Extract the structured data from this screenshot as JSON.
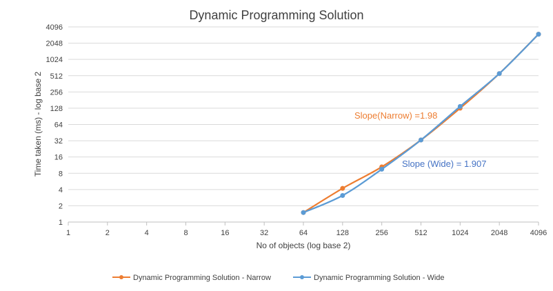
{
  "chart_data": {
    "type": "line",
    "title": "Dynamic Programming Solution",
    "xlabel": "No of objects (log base 2)",
    "ylabel": "Time taken (ms) - log base 2",
    "x_scale": "log2",
    "y_scale": "log2",
    "xlim": [
      1,
      4096
    ],
    "ylim": [
      1,
      4096
    ],
    "x_ticks": [
      "1",
      "2",
      "4",
      "8",
      "16",
      "32",
      "64",
      "128",
      "256",
      "512",
      "1024",
      "2048",
      "4096"
    ],
    "y_ticks": [
      "1",
      "2",
      "4",
      "8",
      "16",
      "32",
      "64",
      "128",
      "256",
      "512",
      "1024",
      "2048",
      "4096"
    ],
    "grid": "horizontal",
    "legend": "bottom",
    "series": [
      {
        "name": "Dynamic Programming Solution - Narrow",
        "color": "#ED7D31",
        "x": [
          64,
          128,
          256,
          512,
          1024,
          2048,
          4096
        ],
        "y": [
          1.5,
          4.2,
          10.5,
          33,
          128,
          560,
          3000
        ]
      },
      {
        "name": "Dynamic Programming Solution - Wide",
        "color": "#5B9BD5",
        "x": [
          64,
          128,
          256,
          512,
          1024,
          2048,
          4096
        ],
        "y": [
          1.5,
          3.1,
          9.5,
          33,
          138,
          560,
          3000
        ]
      }
    ],
    "annotations": [
      {
        "text": "Slope(Narrow) =1.98",
        "color": "#ED7D31"
      },
      {
        "text": "Slope (Wide) = 1.907",
        "color": "#4472C4"
      }
    ]
  }
}
